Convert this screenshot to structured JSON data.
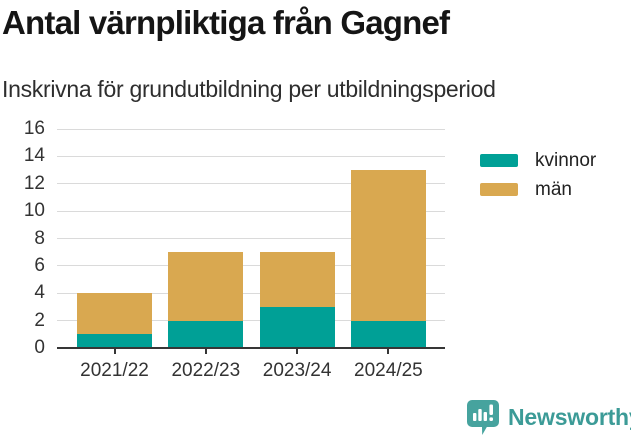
{
  "header": {
    "title": "Antal värnpliktiga från Gagnef",
    "subtitle": "Inskrivna för grundutbildning per utbildningsperiod"
  },
  "chart_data": {
    "type": "bar",
    "stacked": true,
    "title": "Antal värnpliktiga från Gagnef",
    "subtitle": "Inskrivna för grundutbildning per utbildningsperiod",
    "categories": [
      "2021/22",
      "2022/23",
      "2023/24",
      "2024/25"
    ],
    "series": [
      {
        "name": "kvinnor",
        "color": "#00a096",
        "values": [
          1,
          2,
          3,
          2
        ]
      },
      {
        "name": "män",
        "color": "#d9a850",
        "values": [
          3,
          5,
          4,
          11
        ]
      }
    ],
    "totals": [
      4,
      7,
      7,
      13
    ],
    "xlabel": "",
    "ylabel": "",
    "ylim": [
      0,
      16
    ],
    "yticks": [
      0,
      2,
      4,
      6,
      8,
      10,
      12,
      14,
      16
    ],
    "grid": "horizontal-only",
    "legend_position": "right-top",
    "axis_color": "#363636",
    "grid_color": "#dadada",
    "tick_label_color": "#333333"
  },
  "footer": {
    "brand": "Newsworthy",
    "brand_color": "#3c9b97",
    "logo_color": "#46a39e"
  }
}
